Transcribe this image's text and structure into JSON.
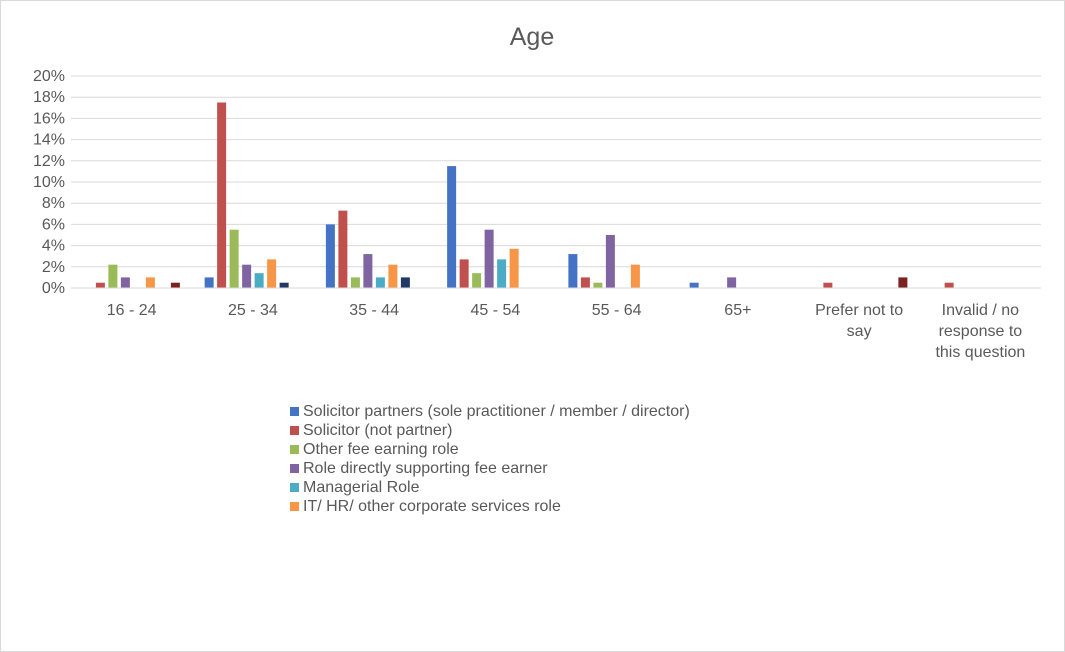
{
  "chart_data": {
    "type": "bar",
    "title": "Age",
    "xlabel": "",
    "ylabel": "",
    "ylim": [
      0,
      0.2
    ],
    "yticks": [
      "0%",
      "2%",
      "4%",
      "6%",
      "8%",
      "10%",
      "12%",
      "14%",
      "16%",
      "18%",
      "20%"
    ],
    "grid": true,
    "legend_position": "bottom",
    "categories": [
      [
        "16 - 24"
      ],
      [
        "25 - 34"
      ],
      [
        "35 - 44"
      ],
      [
        "45 - 54"
      ],
      [
        "55 - 64"
      ],
      [
        "65+"
      ],
      [
        "Prefer not to",
        "say"
      ],
      [
        "Invalid / no",
        "response to",
        "this question"
      ]
    ],
    "series": [
      {
        "name": "Solicitor partners (sole practitioner / member / director)",
        "color": "#4472c4",
        "values": [
          0.0,
          0.01,
          0.06,
          0.115,
          0.032,
          0.005,
          0.0,
          0.0
        ]
      },
      {
        "name": "Solicitor (not partner)",
        "color": "#c0504d",
        "values": [
          0.005,
          0.175,
          0.073,
          0.027,
          0.01,
          0.0,
          0.005,
          0.005
        ]
      },
      {
        "name": "Other fee earning role",
        "color": "#9bbb59",
        "values": [
          0.022,
          0.055,
          0.01,
          0.014,
          0.005,
          0.0,
          0.0,
          0.0
        ]
      },
      {
        "name": "Role directly supporting fee earner",
        "color": "#8064a2",
        "values": [
          0.01,
          0.022,
          0.032,
          0.055,
          0.05,
          0.01,
          0.0,
          0.0
        ]
      },
      {
        "name": "Managerial Role",
        "color": "#4bacc6",
        "values": [
          0.0,
          0.014,
          0.01,
          0.027,
          0.0,
          0.0,
          0.0,
          0.0
        ]
      },
      {
        "name": "IT/ HR/ other corporate services role",
        "color": "#f79646",
        "values": [
          0.01,
          0.027,
          0.022,
          0.037,
          0.022,
          0.0,
          0.0,
          0.0
        ]
      },
      {
        "color": "#1f3864",
        "values": [
          0.0,
          0.005,
          0.01,
          0.0,
          0.0,
          0.0,
          0.0,
          0.0
        ]
      },
      {
        "color": "#7b2121",
        "values": [
          0.005,
          0.0,
          0.0,
          0.0,
          0.0,
          0.0,
          0.01,
          0.0
        ]
      }
    ]
  }
}
